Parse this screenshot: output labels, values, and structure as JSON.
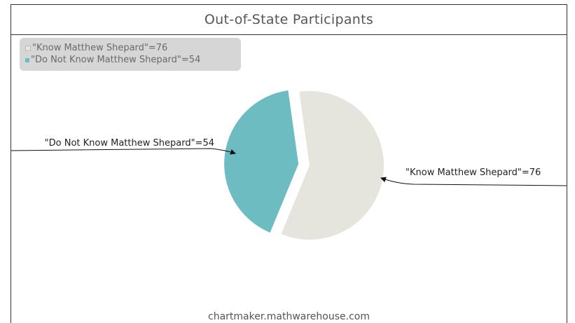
{
  "chart_data": {
    "type": "pie",
    "title": "Out-of-State Participants",
    "slices": [
      {
        "label": "\"Know Matthew Shepard\"",
        "value": 76,
        "color": "#e5e5dd",
        "exploded": false
      },
      {
        "label": "\"Do Not Know Matthew Shepard\"",
        "value": 54,
        "color": "#6dbcc2",
        "exploded": true
      }
    ],
    "legend_entries": [
      "\"Know Matthew Shepard\"=76",
      "\"Do Not Know Matthew Shepard\"=54"
    ],
    "callout_labels": [
      "\"Know Matthew Shepard\"=76",
      "\"Do Not Know Matthew Shepard\"=54"
    ],
    "legend_placement": "top-left",
    "grid": false
  },
  "watermark": "chartmaker.mathwarehouse.com"
}
